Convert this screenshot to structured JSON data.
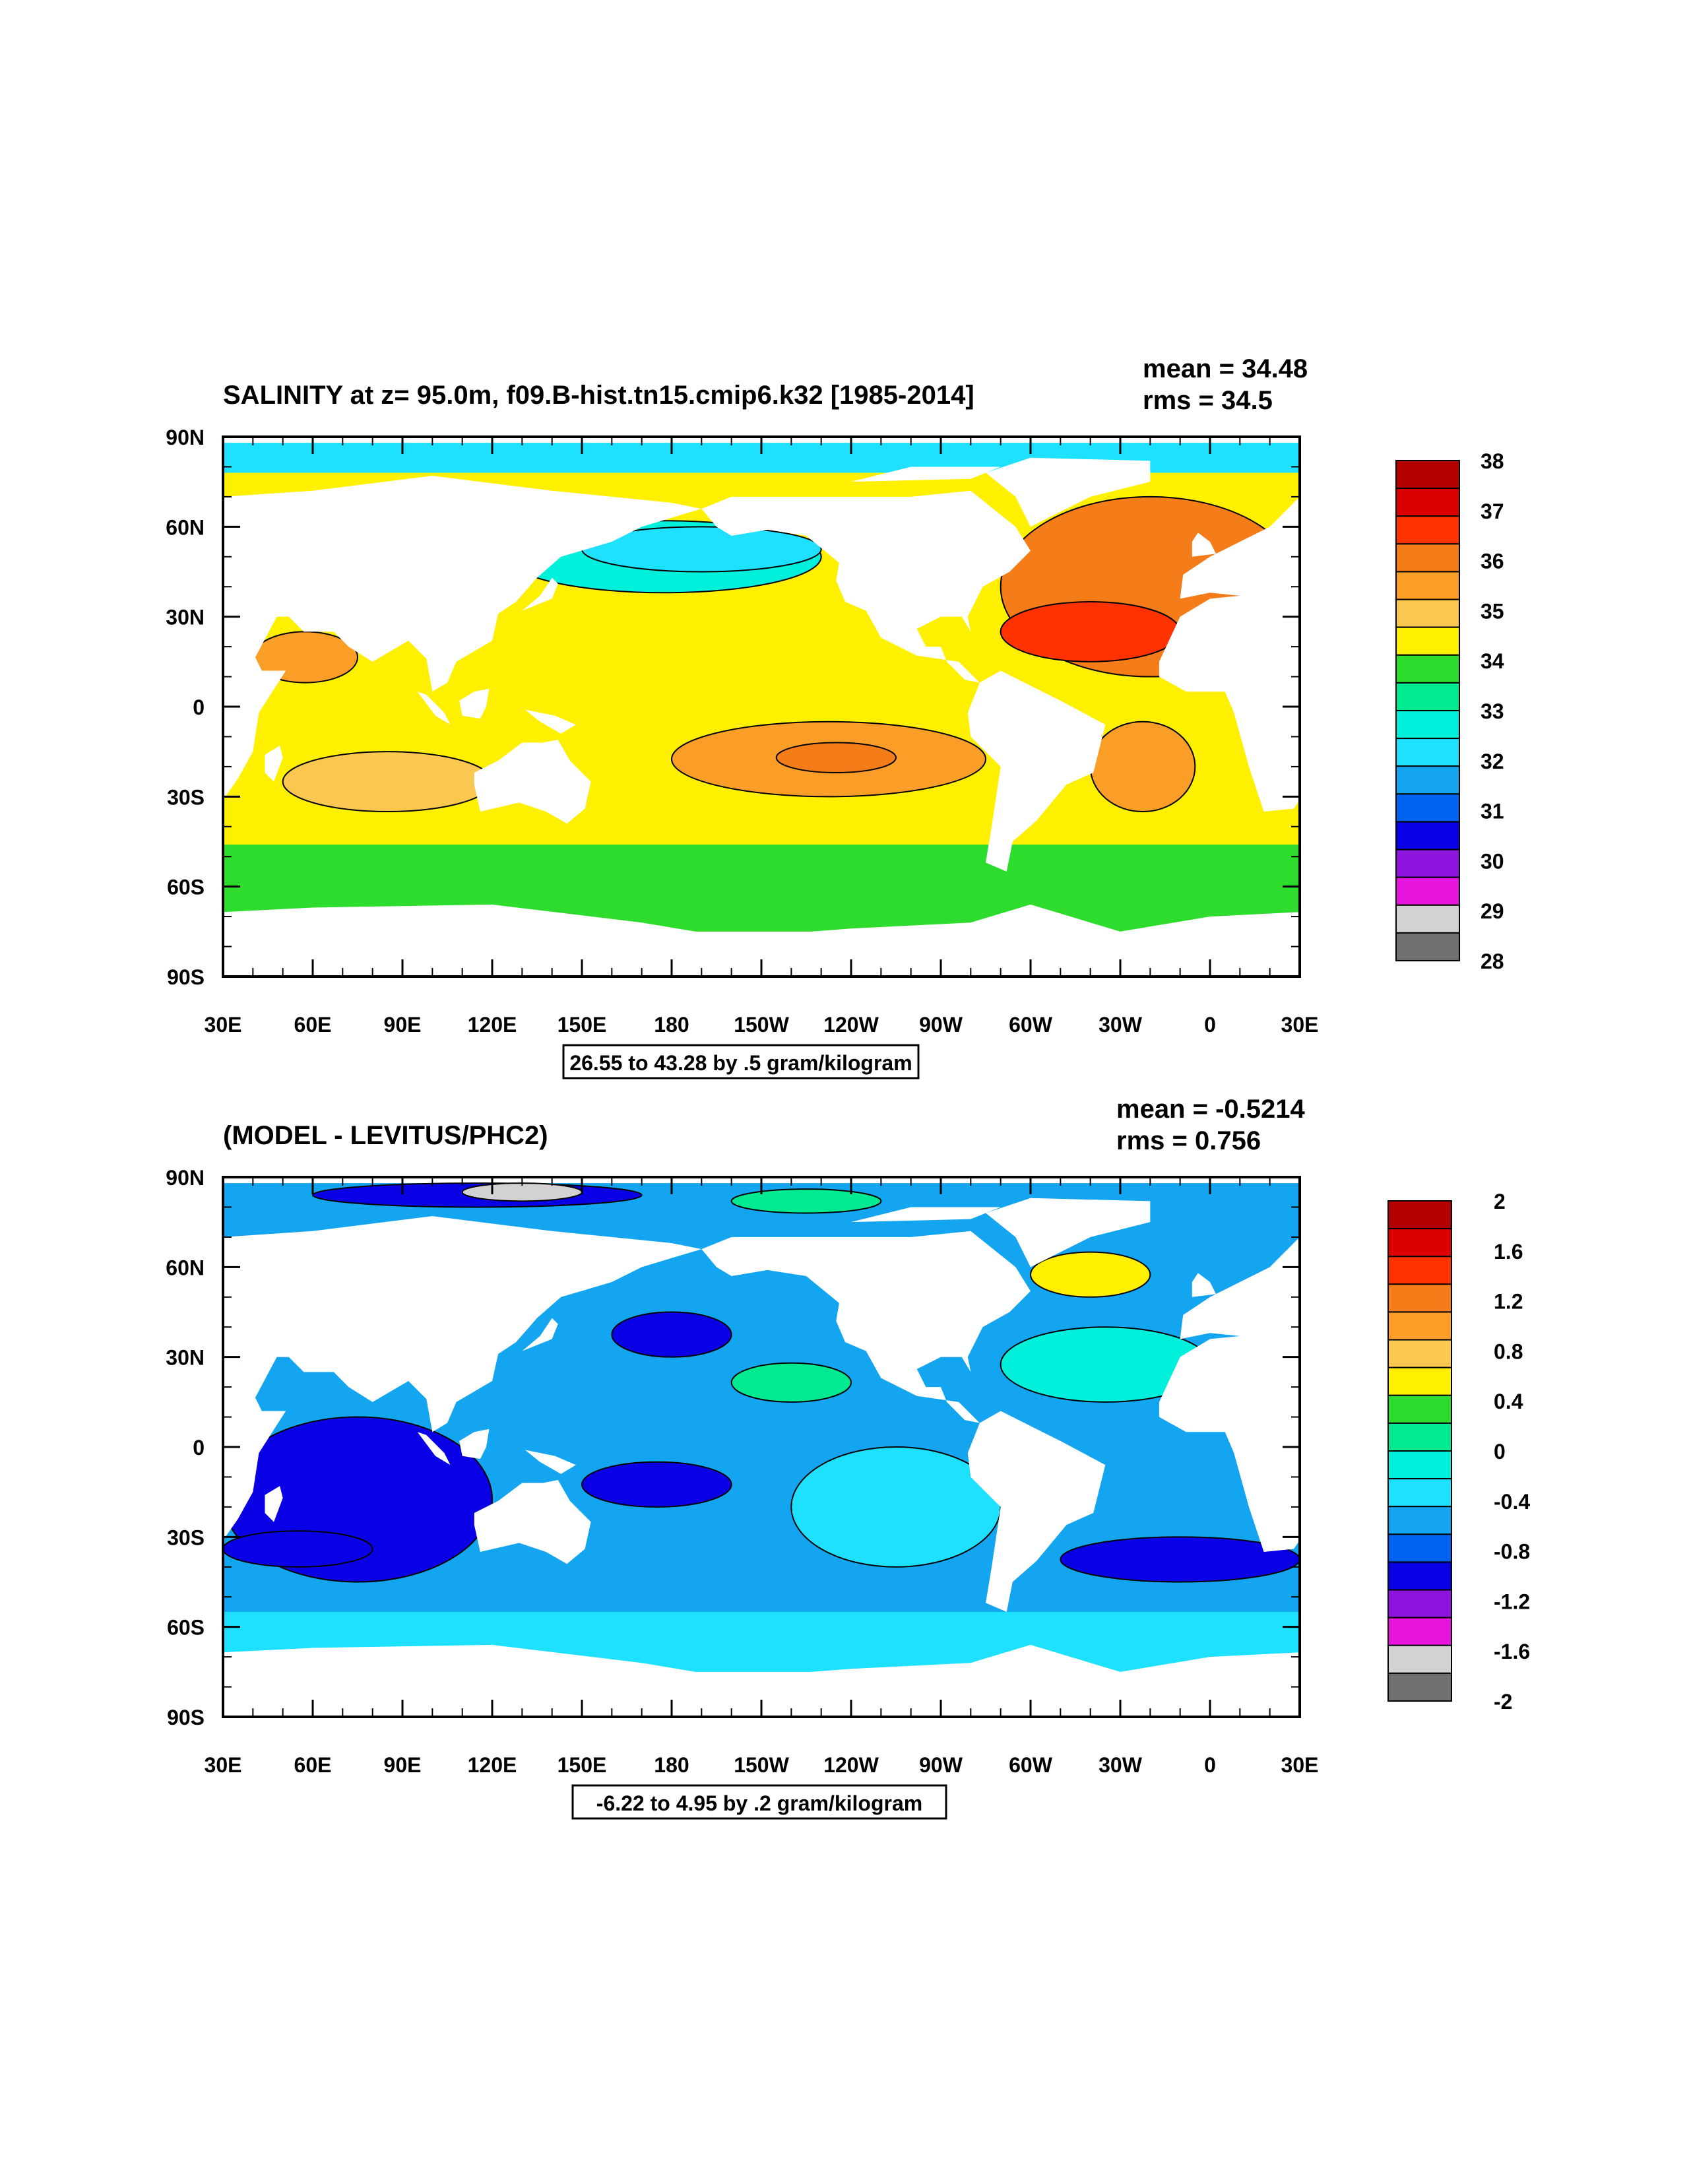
{
  "panels": [
    {
      "title": "SALINITY at z=  95.0m, f09.B-hist.tn15.cmip6.k32 [1985-2014]",
      "stats": {
        "mean": "mean = 34.48",
        "rms": "rms = 34.5"
      },
      "contour_info": "26.55 to 43.28 by .5 gram/kilogram",
      "colorbar_labels": [
        "38",
        "37",
        "36",
        "35",
        "34",
        "33",
        "32",
        "31",
        "30",
        "29",
        "28"
      ],
      "colorbar_colors": [
        "#b40000",
        "#dc0000",
        "#ff3200",
        "#f57d19",
        "#fa9e28",
        "#fac850",
        "#fff000",
        "#2ddc2d",
        "#00eb91",
        "#00f0dc",
        "#1ee1ff",
        "#14a5f0",
        "#0064f0",
        "#0a00e6",
        "#8c14dc",
        "#e614dc",
        "#d2d2d2",
        "#707070"
      ]
    },
    {
      "title": "(MODEL - LEVITUS/PHC2)",
      "stats": {
        "mean": "mean = -0.5214",
        "rms": "rms = 0.756"
      },
      "contour_info": "-6.22 to 4.95 by .2 gram/kilogram",
      "colorbar_labels": [
        "2",
        "1.6",
        "1.2",
        "0.8",
        "0.4",
        "0",
        "-0.4",
        "-0.8",
        "-1.2",
        "-1.6",
        "-2"
      ],
      "colorbar_colors": [
        "#b40000",
        "#dc0000",
        "#ff3200",
        "#f57d19",
        "#fa9e28",
        "#fac850",
        "#fff000",
        "#2ddc2d",
        "#00eb91",
        "#00f0dc",
        "#1ee1ff",
        "#14a5f0",
        "#0064f0",
        "#0a00e6",
        "#8c14dc",
        "#e614dc",
        "#d2d2d2",
        "#707070"
      ]
    }
  ],
  "axes": {
    "lat_labels": [
      "90N",
      "60N",
      "30N",
      "0",
      "30S",
      "60S",
      "90S"
    ],
    "lon_labels": [
      "30E",
      "60E",
      "90E",
      "120E",
      "150E",
      "180",
      "150W",
      "120W",
      "90W",
      "60W",
      "30W",
      "0",
      "30E"
    ]
  },
  "chart_data": [
    {
      "type": "heatmap",
      "title": "SALINITY at z=  95.0m, f09.B-hist.tn15.cmip6.k32 [1985-2014]",
      "xlim": [
        30,
        390
      ],
      "ylim": [
        -90,
        90
      ],
      "x_tick_labels": [
        "30E",
        "60E",
        "90E",
        "120E",
        "150E",
        "180",
        "150W",
        "120W",
        "90W",
        "60W",
        "30W",
        "0",
        "30E"
      ],
      "y_tick_labels": [
        "90N",
        "60N",
        "30N",
        "0",
        "30S",
        "60S",
        "90S"
      ],
      "colorbar": {
        "labels": [
          38,
          37,
          36,
          35,
          34,
          33,
          32,
          31,
          30,
          29,
          28
        ],
        "min": 28,
        "max": 38,
        "step": 0.5
      },
      "stats": {
        "mean": 34.48,
        "rms": 34.5
      },
      "contour_info": "26.55 to 43.28 by .5 gram/kilogram",
      "regions": [
        {
          "lon_min": 30,
          "lon_max": 390,
          "lat_min": -75,
          "lat_max": 88,
          "value": 34.2
        },
        {
          "lon_min": 30,
          "lon_max": 390,
          "lat_min": -75,
          "lat_max": -46,
          "value": 33.8
        },
        {
          "lon_min": 125,
          "lon_max": 230,
          "lat_min": 38,
          "lat_max": 62,
          "value": 32.6
        },
        {
          "lon_min": 150,
          "lon_max": 230,
          "lat_min": 45,
          "lat_max": 60,
          "value": 32.2
        },
        {
          "lon_min": 290,
          "lon_max": 390,
          "lat_min": 10,
          "lat_max": 70,
          "value": 35.8
        },
        {
          "lon_min": 290,
          "lon_max": 350,
          "lat_min": 15,
          "lat_max": 35,
          "value": 36.6
        },
        {
          "lon_min": 320,
          "lon_max": 355,
          "lat_min": -35,
          "lat_max": -5,
          "value": 35.6
        },
        {
          "lon_min": 180,
          "lon_max": 285,
          "lat_min": -30,
          "lat_max": -5,
          "value": 35.3
        },
        {
          "lon_min": 215,
          "lon_max": 255,
          "lat_min": -22,
          "lat_max": -12,
          "value": 36.1
        },
        {
          "lon_min": 50,
          "lon_max": 120,
          "lat_min": -35,
          "lat_max": -15,
          "value": 35.2
        },
        {
          "lon_min": 40,
          "lon_max": 75,
          "lat_min": 8,
          "lat_max": 25,
          "value": 35.5
        },
        {
          "lon_min": 30,
          "lon_max": 390,
          "lat_min": 78,
          "lat_max": 88,
          "value": 32.1
        }
      ]
    },
    {
      "type": "heatmap",
      "title": "(MODEL - LEVITUS/PHC2)",
      "xlim": [
        30,
        390
      ],
      "ylim": [
        -90,
        90
      ],
      "x_tick_labels": [
        "30E",
        "60E",
        "90E",
        "120E",
        "150E",
        "180",
        "150W",
        "120W",
        "90W",
        "60W",
        "30W",
        "0",
        "30E"
      ],
      "y_tick_labels": [
        "90N",
        "60N",
        "30N",
        "0",
        "30S",
        "60S",
        "90S"
      ],
      "colorbar": {
        "labels": [
          2,
          1.6,
          1.2,
          0.8,
          0.4,
          0,
          -0.4,
          -0.8,
          -1.2,
          -1.6,
          -2
        ],
        "min": -2,
        "max": 2,
        "step": 0.2
      },
      "stats": {
        "mean": -0.5214,
        "rms": 0.756
      },
      "contour_info": "-6.22 to 4.95 by .2 gram/kilogram",
      "regions": [
        {
          "lon_min": 30,
          "lon_max": 390,
          "lat_min": -75,
          "lat_max": 88,
          "value": -0.5
        },
        {
          "lon_min": 30,
          "lon_max": 120,
          "lat_min": -45,
          "lat_max": 10,
          "value": -0.9
        },
        {
          "lon_min": 30,
          "lon_max": 80,
          "lat_min": -40,
          "lat_max": -28,
          "value": -1.1
        },
        {
          "lon_min": 150,
          "lon_max": 200,
          "lat_min": -20,
          "lat_max": -5,
          "value": -1.0
        },
        {
          "lon_min": 220,
          "lon_max": 290,
          "lat_min": -40,
          "lat_max": 0,
          "value": -0.3
        },
        {
          "lon_min": 290,
          "lon_max": 360,
          "lat_min": 15,
          "lat_max": 40,
          "value": -0.2
        },
        {
          "lon_min": 300,
          "lon_max": 340,
          "lat_min": 50,
          "lat_max": 65,
          "value": 0.5
        },
        {
          "lon_min": 310,
          "lon_max": 390,
          "lat_min": -45,
          "lat_max": -30,
          "value": -0.9
        },
        {
          "lon_min": 60,
          "lon_max": 170,
          "lat_min": 80,
          "lat_max": 88,
          "value": -1.1
        },
        {
          "lon_min": 110,
          "lon_max": 150,
          "lat_min": 82,
          "lat_max": 88,
          "value": -1.6
        },
        {
          "lon_min": 200,
          "lon_max": 250,
          "lat_min": 78,
          "lat_max": 86,
          "value": 0.2
        },
        {
          "lon_min": 30,
          "lon_max": 390,
          "lat_min": -75,
          "lat_max": -55,
          "value": -0.35
        },
        {
          "lon_min": 160,
          "lon_max": 200,
          "lat_min": 30,
          "lat_max": 45,
          "value": -0.9
        },
        {
          "lon_min": 200,
          "lon_max": 240,
          "lat_min": 15,
          "lat_max": 28,
          "value": 0.1
        }
      ]
    }
  ]
}
